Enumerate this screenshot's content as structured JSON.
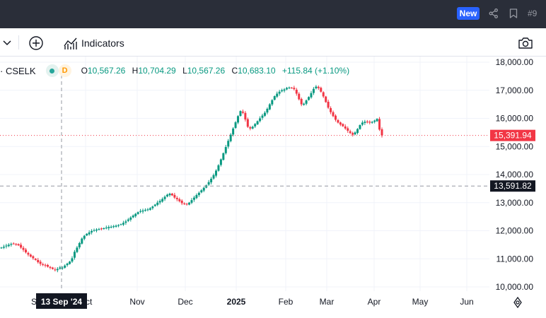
{
  "topbar": {
    "new_label": "New",
    "share_icon": "share-icon",
    "bookmark_icon": "bookmark-icon",
    "page_number": "#9"
  },
  "toolbar": {
    "indicators_label": "Indicators",
    "plus_icon": "plus-circle-icon",
    "indicators_icon": "indicators-icon",
    "camera_icon": "camera-icon",
    "chevron_icon": "chevron-down-icon"
  },
  "legend": {
    "symbol": "· CSELK",
    "interval_badge": "D",
    "open_key": "O",
    "open": "10,567.26",
    "high_key": "H",
    "high": "10,704.29",
    "low_key": "L",
    "low": "10,567.26",
    "close_key": "C",
    "close": "10,683.10",
    "change": "+115.84 (+1.10%)"
  },
  "colors": {
    "up": "#089981",
    "down": "#f23645",
    "badge_new": "#2962ff",
    "price_label": "#f23645",
    "crosshair_label": "#131722"
  },
  "chart_data": {
    "type": "candlestick",
    "y_axis_ticks": [
      "10,000.00",
      "11,000.00",
      "12,000.00",
      "13,000.00",
      "14,000.00",
      "15,000.00",
      "16,000.00",
      "17,000.00",
      "18,000.00"
    ],
    "ylim": [
      9900,
      18100
    ],
    "x_axis_labels": [
      "Oct",
      "Nov",
      "Dec",
      "2025",
      "Feb",
      "Mar",
      "Apr",
      "May",
      "Jun"
    ],
    "last_price_label": "15,391.94",
    "last_price": 15391.94,
    "crosshair_price_label": "13,591.82",
    "crosshair_price": 13591.82,
    "crosshair_date_label": "13 Sep '24",
    "grid": true,
    "closes": [
      11400,
      11430,
      11470,
      11500,
      11530,
      11540,
      11520,
      11480,
      11400,
      11320,
      11230,
      11150,
      11080,
      11020,
      10960,
      10880,
      10820,
      10780,
      10760,
      10720,
      10680,
      10640,
      10600,
      10640,
      10690,
      10683,
      10760,
      10830,
      10900,
      11020,
      11250,
      11400,
      11560,
      11720,
      11820,
      11890,
      11940,
      11990,
      12020,
      12040,
      12060,
      12070,
      12090,
      12110,
      12130,
      12140,
      12160,
      12180,
      12200,
      12230,
      12280,
      12330,
      12400,
      12470,
      12540,
      12600,
      12660,
      12700,
      12720,
      12740,
      12760,
      12800,
      12860,
      12930,
      13000,
      13060,
      13130,
      13210,
      13280,
      13320,
      13260,
      13180,
      13120,
      13050,
      12980,
      12950,
      12950,
      13000,
      13090,
      13180,
      13270,
      13350,
      13440,
      13530,
      13620,
      13730,
      13850,
      13980,
      14140,
      14330,
      14540,
      14760,
      14980,
      15200,
      15420,
      15640,
      15860,
      16080,
      16260,
      16200,
      15960,
      15700,
      15640,
      15700,
      15800,
      15900,
      16000,
      16100,
      16200,
      16340,
      16500,
      16650,
      16790,
      16880,
      16950,
      17000,
      17030,
      17080,
      17100,
      17080,
      17040,
      16880,
      16680,
      16500,
      16520,
      16640,
      16760,
      16900,
      17050,
      17130,
      17080,
      16950,
      16780,
      16580,
      16380,
      16220,
      16080,
      15950,
      15850,
      15780,
      15720,
      15640,
      15560,
      15480,
      15420,
      15500,
      15620,
      15760,
      15850,
      15880,
      15860,
      15850,
      15870,
      15920,
      15980,
      15600,
      15392
    ]
  }
}
